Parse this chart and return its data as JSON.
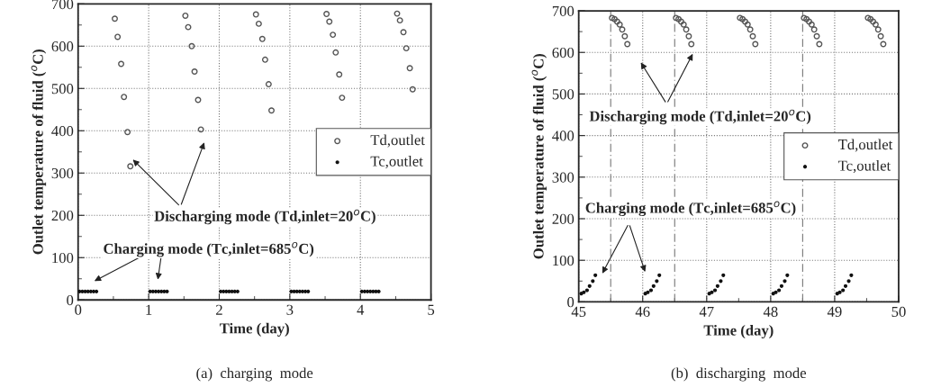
{
  "chart_data": [
    {
      "type": "scatter",
      "xlabel": "Time (day)",
      "ylabel": "Outlet temperature of fluid ($^{o}$C)",
      "xlim": [
        0,
        5
      ],
      "ylim": [
        0,
        700
      ],
      "xticks": [
        0,
        1,
        2,
        3,
        4,
        5
      ],
      "yticks": [
        0,
        100,
        200,
        300,
        400,
        500,
        600,
        700
      ],
      "grid": true,
      "legend": "right",
      "marker": "circle",
      "series": [
        {
          "name": "Td,outlet",
          "color": "#555555",
          "x": [
            0.52,
            0.56,
            0.61,
            0.65,
            0.7,
            0.74,
            1.52,
            1.56,
            1.61,
            1.65,
            1.7,
            1.74,
            2.52,
            2.56,
            2.61,
            2.65,
            2.7,
            2.74,
            3.52,
            3.56,
            3.61,
            3.65,
            3.7,
            3.74,
            4.52,
            4.56,
            4.61,
            4.65,
            4.7,
            4.74
          ],
          "values": [
            665,
            622,
            558,
            480,
            397,
            316,
            672,
            645,
            600,
            540,
            473,
            403,
            675,
            653,
            617,
            568,
            510,
            448,
            676,
            658,
            627,
            585,
            533,
            478,
            677,
            661,
            633,
            595,
            548,
            498
          ]
        },
        {
          "name": "Tc,outlet",
          "color": "#111111",
          "x": [
            0.02,
            0.06,
            0.1,
            0.14,
            0.18,
            0.22,
            0.26,
            1.02,
            1.06,
            1.1,
            1.14,
            1.18,
            1.22,
            1.26,
            2.02,
            2.06,
            2.1,
            2.14,
            2.18,
            2.22,
            2.26,
            3.02,
            3.06,
            3.1,
            3.14,
            3.18,
            3.22,
            3.26,
            4.02,
            4.06,
            4.1,
            4.14,
            4.18,
            4.22,
            4.26
          ],
          "values": [
            20,
            20,
            20,
            20,
            20,
            20,
            20,
            20,
            20,
            20,
            20,
            20,
            20,
            20,
            20,
            20,
            20,
            20,
            20,
            20,
            20,
            20,
            20,
            20,
            20,
            20,
            20,
            20,
            20,
            20,
            20,
            20,
            20,
            20,
            20
          ]
        }
      ],
      "annotations": [
        "Discharging mode (Td,inlet=20$^{o}$C)",
        "Charging mode (Tc,inlet=685$^{o}$C)",
        "(a)  charging  mode"
      ]
    },
    {
      "type": "scatter",
      "xlabel": "Time (day)",
      "ylabel": "Outlet temperature of fluid ($^{o}$C)",
      "xlim": [
        45,
        50
      ],
      "ylim": [
        0,
        700
      ],
      "xticks": [
        45,
        46,
        47,
        48,
        49,
        50
      ],
      "yticks": [
        0,
        100,
        200,
        300,
        400,
        500,
        600,
        700
      ],
      "grid": true,
      "legend": "right",
      "marker": "circle",
      "ref_lines": [
        {
          "axis": "x",
          "value": 45.5,
          "line_style": "dashed",
          "color": "#777777"
        },
        {
          "axis": "x",
          "value": 46.5,
          "line_style": "dashed",
          "color": "#777777"
        },
        {
          "axis": "x",
          "value": 48.5,
          "line_style": "dashed",
          "color": "#777777"
        }
      ],
      "series": [
        {
          "name": "Td,outlet",
          "color": "#555555",
          "x": [
            45.52,
            45.56,
            45.6,
            45.64,
            45.68,
            45.72,
            45.76,
            46.52,
            46.56,
            46.6,
            46.64,
            46.68,
            46.72,
            46.76,
            47.52,
            47.56,
            47.6,
            47.64,
            47.68,
            47.72,
            47.76,
            48.52,
            48.56,
            48.6,
            48.64,
            48.68,
            48.72,
            48.76,
            49.52,
            49.56,
            49.6,
            49.64,
            49.68,
            49.72,
            49.76
          ],
          "values": [
            683,
            680,
            674,
            667,
            655,
            639,
            620,
            683,
            680,
            674,
            667,
            655,
            639,
            620,
            683,
            680,
            674,
            667,
            655,
            639,
            620,
            683,
            680,
            674,
            667,
            655,
            639,
            620,
            683,
            680,
            674,
            667,
            655,
            639,
            620
          ]
        },
        {
          "name": "Tc,outlet",
          "color": "#111111",
          "x": [
            45.04,
            45.08,
            45.13,
            45.17,
            45.22,
            45.26,
            46.04,
            46.08,
            46.13,
            46.17,
            46.22,
            46.26,
            47.04,
            47.08,
            47.13,
            47.17,
            47.22,
            47.26,
            48.04,
            48.08,
            48.13,
            48.17,
            48.22,
            48.26,
            49.04,
            49.08,
            49.13,
            49.17,
            49.22,
            49.26
          ],
          "values": [
            20,
            23,
            28,
            38,
            50,
            64,
            20,
            23,
            28,
            38,
            50,
            64,
            20,
            23,
            28,
            38,
            50,
            64,
            20,
            23,
            28,
            38,
            50,
            64,
            20,
            23,
            28,
            38,
            50,
            64
          ]
        }
      ],
      "annotations": [
        "Discharging mode (Td,inlet=20$^{o}$C)",
        "Charging mode (Tc,inlet=685$^{o}$C)",
        "(b)  discharging  mode"
      ]
    }
  ]
}
